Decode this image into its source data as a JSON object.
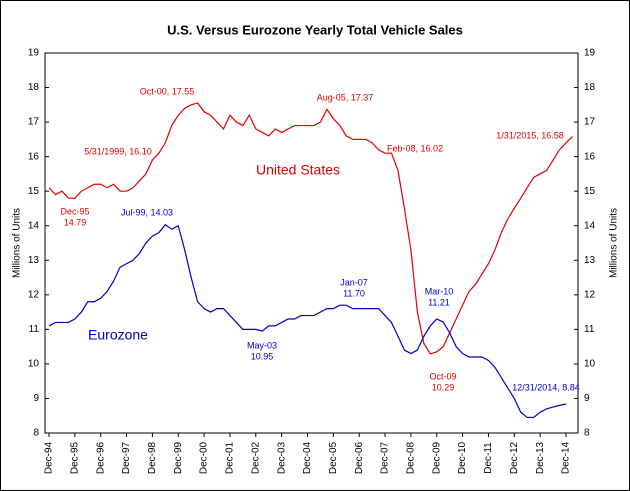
{
  "chart_data": {
    "type": "line",
    "title": "U.S. Versus Eurozone Yearly Total Vehicle Sales",
    "y_label": "Millions of Units",
    "y2_label": "Millions of Units",
    "categories": [
      "Dec-94",
      null,
      null,
      null,
      "Dec-95",
      null,
      null,
      null,
      "Dec-96",
      null,
      null,
      null,
      "Dec-97",
      null,
      null,
      null,
      "Dec-98",
      null,
      null,
      null,
      "Dec-99",
      null,
      null,
      null,
      "Dec-00",
      null,
      null,
      null,
      "Dec-01",
      null,
      null,
      null,
      "Dec-02",
      null,
      null,
      null,
      "Dec-03",
      null,
      null,
      null,
      "Dec-04",
      null,
      null,
      null,
      "Dec-05",
      null,
      null,
      null,
      "Dec-06",
      null,
      null,
      null,
      "Dec-07",
      null,
      null,
      null,
      "Dec-08",
      null,
      null,
      null,
      "Dec-09",
      null,
      null,
      null,
      "Dec-10",
      null,
      null,
      null,
      "Dec-11",
      null,
      null,
      null,
      "Dec-12",
      null,
      null,
      null,
      "Dec-13",
      null,
      null,
      null,
      "Dec-14",
      null
    ],
    "series": [
      {
        "name": "United States",
        "color": "#e00000",
        "values": [
          15.1,
          14.9,
          15.0,
          14.8,
          14.79,
          15.0,
          15.1,
          15.2,
          15.2,
          15.1,
          15.2,
          15.0,
          15.0,
          15.1,
          15.3,
          15.5,
          15.9,
          16.1,
          16.4,
          16.9,
          17.2,
          17.4,
          17.5,
          17.55,
          17.3,
          17.2,
          17.0,
          16.8,
          17.2,
          17.0,
          16.9,
          17.2,
          16.8,
          16.7,
          16.6,
          16.8,
          16.7,
          16.8,
          16.9,
          16.9,
          16.9,
          16.9,
          17.0,
          17.37,
          17.1,
          16.9,
          16.6,
          16.5,
          16.5,
          16.5,
          16.4,
          16.2,
          16.1,
          16.1,
          15.6,
          14.5,
          13.3,
          11.5,
          10.6,
          10.29,
          10.35,
          10.5,
          10.9,
          11.3,
          11.7,
          12.1,
          12.3,
          12.6,
          12.9,
          13.3,
          13.8,
          14.2,
          14.5,
          14.8,
          15.1,
          15.4,
          15.5,
          15.6,
          15.9,
          16.2,
          16.4,
          16.58
        ]
      },
      {
        "name": "Eurozone",
        "color": "#0000c8",
        "values": [
          11.1,
          11.2,
          11.2,
          11.2,
          11.3,
          11.5,
          11.8,
          11.8,
          11.9,
          12.1,
          12.4,
          12.8,
          12.9,
          13.0,
          13.2,
          13.5,
          13.7,
          13.8,
          14.03,
          13.9,
          14.0,
          13.3,
          12.5,
          11.8,
          11.6,
          11.5,
          11.6,
          11.6,
          11.4,
          11.2,
          11.0,
          11.0,
          11.0,
          10.95,
          11.1,
          11.1,
          11.2,
          11.3,
          11.3,
          11.4,
          11.4,
          11.4,
          11.5,
          11.6,
          11.6,
          11.7,
          11.7,
          11.6,
          11.6,
          11.6,
          11.6,
          11.6,
          11.4,
          11.2,
          10.8,
          10.4,
          10.3,
          10.4,
          10.8,
          11.1,
          11.3,
          11.21,
          10.9,
          10.5,
          10.3,
          10.2,
          10.2,
          10.2,
          10.1,
          9.9,
          9.6,
          9.3,
          9.0,
          8.6,
          8.45,
          8.45,
          8.6,
          8.7,
          8.75,
          8.8,
          8.84,
          null
        ]
      }
    ],
    "annotations": [
      [
        "Dec-95",
        "14.79"
      ],
      [
        "5/31/1999, 16.10"
      ],
      [
        "Oct-00, 17.55"
      ],
      [
        "Aug-05, 17.37"
      ],
      [
        "Feb-08, 16.02"
      ],
      [
        "1/31/2015, 16.58"
      ],
      [
        "Oct-09",
        "10.29"
      ],
      [
        "Jul-99, 14.03"
      ],
      [
        "Jan-07",
        "11.70"
      ],
      [
        "May-03",
        "10.95"
      ],
      [
        "Mar-10",
        "11.21"
      ],
      [
        "12/31/2014, 8.84"
      ]
    ],
    "ylim": [
      8,
      19
    ],
    "yticks": [
      8,
      9,
      10,
      11,
      12,
      13,
      14,
      15,
      16,
      17,
      18,
      19
    ],
    "y2lim": [
      8,
      19
    ],
    "y2ticks": [
      8,
      9,
      10,
      11,
      12,
      13,
      14,
      15,
      16,
      17,
      18,
      19
    ],
    "grid": false
  }
}
